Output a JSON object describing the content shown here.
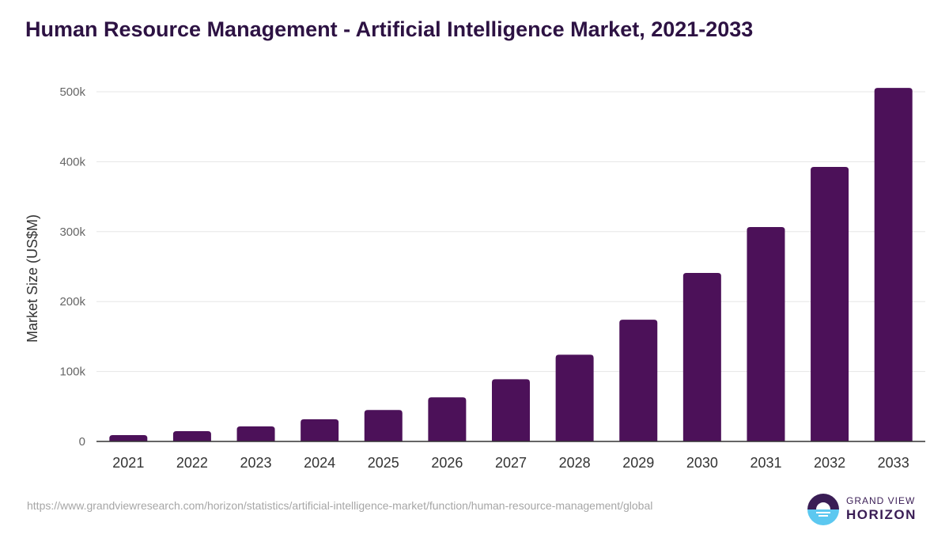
{
  "title": "Human Resource Management - Artificial Intelligence Market, 2021-2033",
  "source_url": "https://www.grandviewresearch.com/horizon/statistics/artificial-intelligence-market/function/human-resource-management/global",
  "logo": {
    "line1": "GRAND VIEW",
    "line2": "HORIZON"
  },
  "colors": {
    "bar": "#4c1159",
    "title": "#2d1243",
    "logo_dark": "#3a1d55",
    "logo_light": "#5cc8f0"
  },
  "chart_data": {
    "type": "bar",
    "title": "Human Resource Management - Artificial Intelligence Market, 2021-2033",
    "xlabel": "",
    "ylabel": "Market Size (US$M)",
    "categories": [
      "2021",
      "2022",
      "2023",
      "2024",
      "2025",
      "2026",
      "2027",
      "2028",
      "2029",
      "2030",
      "2031",
      "2032",
      "2033"
    ],
    "values": [
      9000,
      14700,
      21500,
      31700,
      45000,
      63000,
      89000,
      124000,
      174000,
      241000,
      306500,
      392500,
      505500
    ],
    "ylim": [
      0,
      500000
    ],
    "yticks": [
      0,
      100000,
      200000,
      300000,
      400000,
      500000
    ],
    "ytick_labels": [
      "0",
      "100k",
      "200k",
      "300k",
      "400k",
      "500k"
    ],
    "grid": true,
    "legend": "none"
  }
}
